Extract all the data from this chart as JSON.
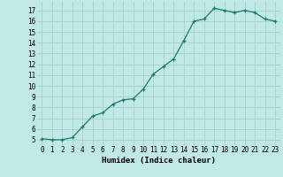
{
  "x": [
    0,
    1,
    2,
    3,
    4,
    5,
    6,
    7,
    8,
    9,
    10,
    11,
    12,
    13,
    14,
    15,
    16,
    17,
    18,
    19,
    20,
    21,
    22,
    23
  ],
  "y": [
    5.1,
    5.0,
    5.0,
    5.2,
    6.2,
    7.2,
    7.5,
    8.3,
    8.7,
    8.8,
    9.7,
    11.1,
    11.8,
    12.5,
    14.2,
    16.0,
    16.2,
    17.2,
    17.0,
    16.8,
    17.0,
    16.8,
    16.2,
    16.0
  ],
  "xlim": [
    -0.5,
    23.5
  ],
  "ylim": [
    4.5,
    17.8
  ],
  "yticks": [
    5,
    6,
    7,
    8,
    9,
    10,
    11,
    12,
    13,
    14,
    15,
    16,
    17
  ],
  "xticks": [
    0,
    1,
    2,
    3,
    4,
    5,
    6,
    7,
    8,
    9,
    10,
    11,
    12,
    13,
    14,
    15,
    16,
    17,
    18,
    19,
    20,
    21,
    22,
    23
  ],
  "xlabel": "Humidex (Indice chaleur)",
  "line_color": "#1a7a6e",
  "marker": "+",
  "bg_color": "#c0e8e4",
  "grid_color": "#a8d4d0",
  "tick_fontsize": 5.5,
  "label_fontsize": 6.5
}
